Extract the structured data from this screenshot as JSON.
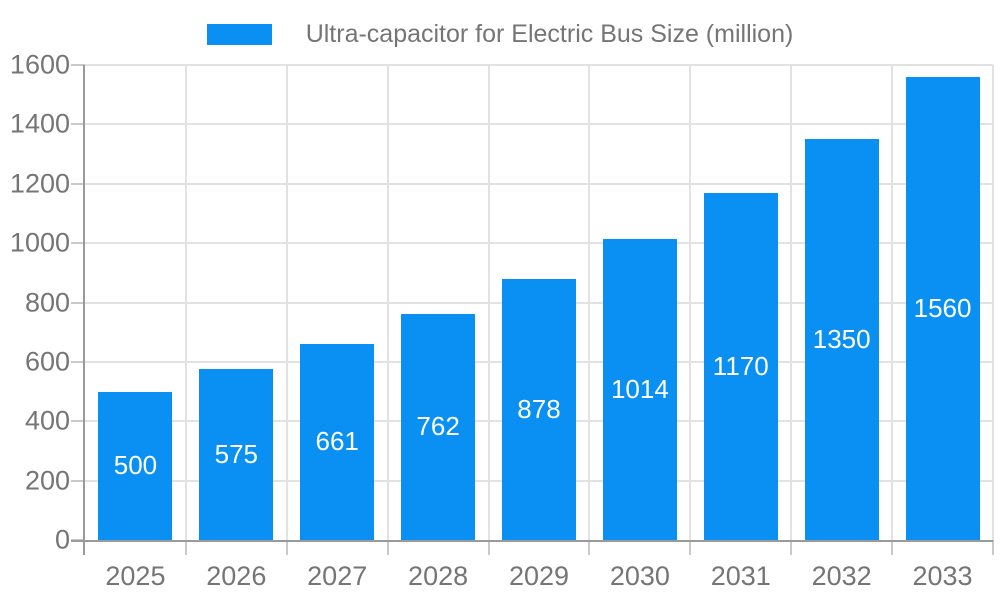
{
  "chart_data": {
    "type": "bar",
    "title": "Ultra-capacitor for Electric Bus Size (million)",
    "categories": [
      "2025",
      "2026",
      "2027",
      "2028",
      "2029",
      "2030",
      "2031",
      "2032",
      "2033"
    ],
    "series": [
      {
        "name": "Ultra-capacitor for Electric Bus Size (million)",
        "values": [
          500,
          575,
          661,
          762,
          878,
          1014,
          1170,
          1350,
          1560
        ]
      }
    ],
    "values": [
      500,
      575,
      661,
      762,
      878,
      1014,
      1170,
      1350,
      1560
    ],
    "yticks": [
      0,
      200,
      400,
      600,
      800,
      1000,
      1200,
      1400,
      1600
    ],
    "ylim": [
      0,
      1600
    ],
    "xlabel": "",
    "ylabel": "",
    "grid": true,
    "legend_position": "top",
    "value_labels": "inside-center"
  },
  "colors": {
    "bar": "#0a90f2",
    "bar_label": "#ffffff",
    "axis_text": "#757575",
    "legend_text": "#757575",
    "gridline": "#e2e2e2",
    "tick": "#c9c9c9",
    "axis_line": "#9a9a9a",
    "background": "#ffffff"
  }
}
